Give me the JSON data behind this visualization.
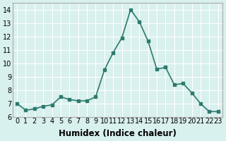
{
  "x": [
    0,
    1,
    2,
    3,
    4,
    5,
    6,
    7,
    8,
    9,
    10,
    11,
    12,
    13,
    14,
    15,
    16,
    17,
    18,
    19,
    20,
    21,
    22,
    23
  ],
  "y": [
    7.0,
    6.5,
    6.6,
    6.8,
    6.9,
    7.5,
    7.3,
    7.2,
    7.2,
    7.5,
    9.5,
    10.8,
    11.9,
    14.0,
    13.1,
    11.65,
    9.55,
    9.7,
    8.4,
    8.5,
    7.8,
    7.0,
    6.4,
    6.4
  ],
  "line_color": "#2d7a6e",
  "marker": "s",
  "marker_size": 2.5,
  "linewidth": 1.2,
  "xlabel": "Humidex (Indice chaleur)",
  "xlim": [
    -0.5,
    23.5
  ],
  "ylim": [
    6,
    14.5
  ],
  "yticks": [
    6,
    7,
    8,
    9,
    10,
    11,
    12,
    13,
    14
  ],
  "xticks": [
    0,
    1,
    2,
    3,
    4,
    5,
    6,
    7,
    8,
    9,
    10,
    11,
    12,
    13,
    14,
    15,
    16,
    17,
    18,
    19,
    20,
    21,
    22,
    23
  ],
  "bg_color": "#d8f0ee",
  "grid_color": "#ffffff",
  "tick_fontsize": 7,
  "xlabel_fontsize": 8.5
}
